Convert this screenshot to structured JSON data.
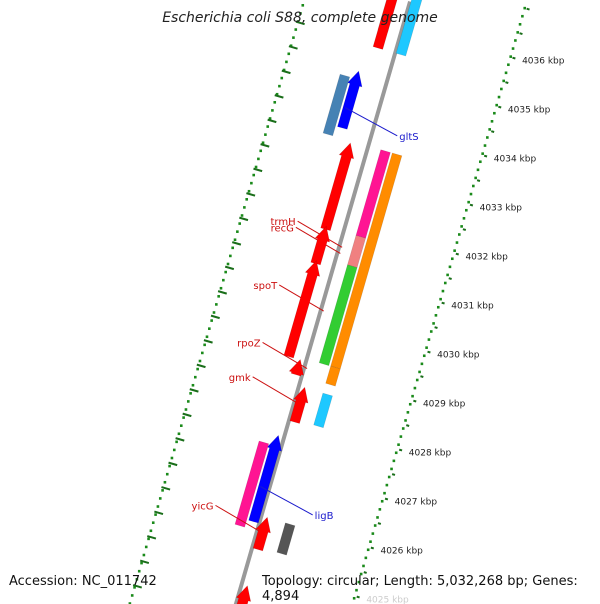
{
  "title": "Escherichia coli S88, complete genome",
  "footer": {
    "accession": "Accession: NC_011742",
    "summary": "Topology: circular; Length: 5,032,268 bp; Genes: 4,894"
  },
  "colors": {
    "backbone": "#999999",
    "dots": "#1a8a1a",
    "tick": "#1a6e1a",
    "left_label": "#cc1111",
    "right_label": "#1a1acc",
    "red": "#ff0000",
    "blue": "#0000ff",
    "steelblue": "#4682b4",
    "magenta": "#ff1493",
    "orange": "#ff8c00",
    "pink": "#f08080",
    "lightpink": "#ffb6c1",
    "green": "#32cd32",
    "cyan": "#1ec8ff",
    "gray": "#555555"
  },
  "scale": {
    "ticks": [
      {
        "kbp": 4036,
        "label": "4036 kbp"
      },
      {
        "kbp": 4035,
        "label": "4035 kbp"
      },
      {
        "kbp": 4034,
        "label": "4034 kbp"
      },
      {
        "kbp": 4033,
        "label": "4033 kbp"
      },
      {
        "kbp": 4032,
        "label": "4032 kbp"
      },
      {
        "kbp": 4031,
        "label": "4031 kbp"
      },
      {
        "kbp": 4030,
        "label": "4030 kbp"
      },
      {
        "kbp": 4029,
        "label": "4029 kbp"
      },
      {
        "kbp": 4028,
        "label": "4028 kbp"
      },
      {
        "kbp": 4027,
        "label": "4027 kbp"
      },
      {
        "kbp": 4026,
        "label": "4026 kbp"
      },
      {
        "kbp": 4025,
        "label": "4025 kbp"
      }
    ]
  },
  "genes": [
    {
      "name": "",
      "color": "cyan",
      "lane": -1,
      "start": 4035.45,
      "end": 4036.7,
      "arrow": false
    },
    {
      "name": "",
      "color": "lightpink",
      "lane": 1,
      "start": 4035.8,
      "end": 4036.7,
      "arrow": false
    },
    {
      "name": "",
      "color": "red",
      "lane": 1,
      "start": 4035.45,
      "end": 4036.7,
      "arrow": true
    },
    {
      "name": "",
      "color": "blue",
      "lane": 2,
      "start": 4033.75,
      "end": 4034.85,
      "arrow": true
    },
    {
      "name": "gltS",
      "color": "steelblue",
      "lane": 3,
      "start": 4033.55,
      "end": 4034.75,
      "arrow": false
    },
    {
      "name": "recG",
      "color": "orange",
      "lane": -3,
      "start": 4029.2,
      "end": 4033.55,
      "arrow": false
    },
    {
      "name": "",
      "color": "magenta",
      "lane": -2,
      "start": 4031.8,
      "end": 4033.55,
      "arrow": false
    },
    {
      "name": "trmH",
      "color": "pink",
      "lane": -2,
      "start": 4031.2,
      "end": 4031.8,
      "arrow": false
    },
    {
      "name": "",
      "color": "red",
      "lane": 1,
      "start": 4031.75,
      "end": 4033.45,
      "arrow": true
    },
    {
      "name": "",
      "color": "red",
      "lane": 1,
      "start": 4031.05,
      "end": 4031.75,
      "arrow": true
    },
    {
      "name": "spoT",
      "color": "green",
      "lane": -2,
      "start": 4029.2,
      "end": 4031.2,
      "arrow": false
    },
    {
      "name": "",
      "color": "red",
      "lane": 1,
      "start": 4029.15,
      "end": 4031.05,
      "arrow": true
    },
    {
      "name": "rpoZ",
      "color": "orange",
      "lane": -3,
      "start": 4028.85,
      "end": 4029.2,
      "arrow": false
    },
    {
      "name": "",
      "color": "red",
      "lane": 0,
      "start": 4028.85,
      "end": 4029.1,
      "arrow": true
    },
    {
      "name": "gmk",
      "color": "cyan",
      "lane": -3,
      "start": 4028.0,
      "end": 4028.65,
      "arrow": false
    },
    {
      "name": "",
      "color": "red",
      "lane": -1,
      "start": 4027.95,
      "end": 4028.6,
      "arrow": true
    },
    {
      "name": "",
      "color": "blue",
      "lane": 0,
      "start": 4025.85,
      "end": 4027.55,
      "arrow": true
    },
    {
      "name": "ligB",
      "color": "magenta",
      "lane": 1,
      "start": 4025.7,
      "end": 4027.4,
      "arrow": false
    },
    {
      "name": "yicG",
      "color": "gray",
      "lane": -3,
      "start": 4025.4,
      "end": 4026.0,
      "arrow": false
    },
    {
      "name": "",
      "color": "red",
      "lane": -1,
      "start": 4025.35,
      "end": 4025.95,
      "arrow": true
    },
    {
      "name": "",
      "color": "red",
      "lane": -1,
      "start": 4023.9,
      "end": 4024.55,
      "arrow": true
    }
  ]
}
